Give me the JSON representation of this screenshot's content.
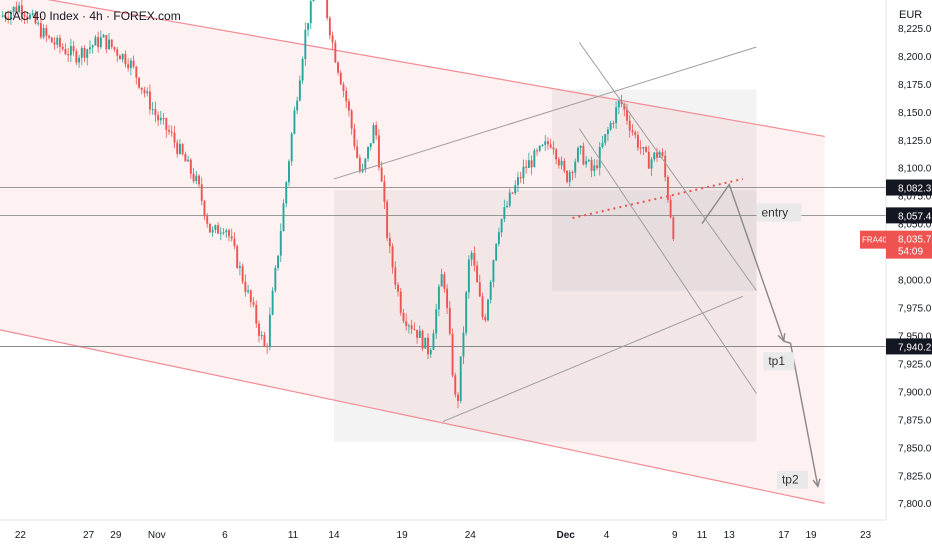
{
  "header": {
    "title": "CAC 40 Index · 4h · FOREX.com",
    "currency": "EUR"
  },
  "colors": {
    "up": "#26a69a",
    "down": "#ef5350",
    "channel": "#f28b94",
    "channel_fill": "#fdecee",
    "drawing": "#9e9e9e",
    "hline": "#7a7a7a",
    "tag_bg": "#e9e9ea",
    "price_tag": "#ef5350"
  },
  "chart_data": {
    "type": "candlestick",
    "symbol": "FRA40",
    "y_ticks": [
      "8,225.0",
      "8,200.0",
      "8,175.0",
      "8,150.0",
      "8,125.0",
      "8,100.0",
      "8,075.0",
      "8,050.0",
      "8,025.0",
      "8,000.0",
      "7,975.0",
      "7,950.0",
      "7,925.0",
      "7,900.0",
      "7,875.0",
      "7,850.0",
      "7,825.0",
      "7,800.0"
    ],
    "y_tick_values": [
      8225,
      8200,
      8175,
      8150,
      8125,
      8100,
      8075,
      8050,
      8025,
      8000,
      7975,
      7950,
      7925,
      7900,
      7875,
      7850,
      7825,
      7800
    ],
    "x_ticks": [
      "22",
      "27",
      "29",
      "Nov",
      "6",
      "11",
      "14",
      "19",
      "24",
      "Dec",
      "4",
      "9",
      "11",
      "13",
      "17",
      "19",
      "23"
    ],
    "x_tick_days": [
      -9,
      -4,
      -2,
      1,
      6,
      11,
      14,
      19,
      24,
      31,
      34,
      39,
      41,
      43,
      47,
      49,
      53
    ],
    "ylim": [
      7785,
      8250
    ],
    "xlim": [
      -10.5,
      54.5
    ],
    "price_levels": [
      {
        "label": "8,082.3",
        "value": 8082.3
      },
      {
        "label": "8,057.4",
        "value": 8057.4
      },
      {
        "label": "7,940.2",
        "value": 7940.2
      }
    ],
    "last_price": {
      "symbol": "FRA40",
      "label": "8,035.7",
      "value": 8035.7,
      "countdown": "54:09"
    },
    "annotations": [
      {
        "text": "entry",
        "day": 45,
        "value": 8060
      },
      {
        "text": "tp1",
        "day": 45.5,
        "value": 7927
      },
      {
        "text": "tp2",
        "day": 46.5,
        "value": 7821
      }
    ],
    "anchors": [
      {
        "day": -10.5,
        "close": 8235
      },
      {
        "day": -9,
        "close": 8245
      },
      {
        "day": -7,
        "close": 8215
      },
      {
        "day": -5,
        "close": 8200
      },
      {
        "day": -3,
        "close": 8215
      },
      {
        "day": -1,
        "close": 8195
      },
      {
        "day": 1,
        "close": 8145
      },
      {
        "day": 2,
        "close": 8130
      },
      {
        "day": 4,
        "close": 8085
      },
      {
        "day": 5,
        "close": 8040
      },
      {
        "day": 6,
        "close": 8050
      },
      {
        "day": 8,
        "close": 7975
      },
      {
        "day": 9,
        "close": 7935
      },
      {
        "day": 10,
        "close": 8035
      },
      {
        "day": 11,
        "close": 8140
      },
      {
        "day": 12,
        "close": 8230
      },
      {
        "day": 13,
        "close": 8270
      },
      {
        "day": 14,
        "close": 8205
      },
      {
        "day": 15,
        "close": 8155
      },
      {
        "day": 16,
        "close": 8090
      },
      {
        "day": 17,
        "close": 8140
      },
      {
        "day": 18,
        "close": 8030
      },
      {
        "day": 19,
        "close": 7970
      },
      {
        "day": 20,
        "close": 7955
      },
      {
        "day": 21,
        "close": 7935
      },
      {
        "day": 22,
        "close": 8010
      },
      {
        "day": 23,
        "close": 7880
      },
      {
        "day": 24,
        "close": 8030
      },
      {
        "day": 25,
        "close": 7960
      },
      {
        "day": 26,
        "close": 8045
      },
      {
        "day": 27,
        "close": 8075
      },
      {
        "day": 28,
        "close": 8100
      },
      {
        "day": 30,
        "close": 8125
      },
      {
        "day": 31,
        "close": 8090
      },
      {
        "day": 32,
        "close": 8115
      },
      {
        "day": 33,
        "close": 8095
      },
      {
        "day": 34,
        "close": 8130
      },
      {
        "day": 35,
        "close": 8160
      },
      {
        "day": 36,
        "close": 8130
      },
      {
        "day": 37,
        "close": 8105
      },
      {
        "day": 38,
        "close": 8115
      },
      {
        "day": 39,
        "close": 8035
      }
    ],
    "channel": {
      "upper": [
        [
          -10.5,
          8258
        ],
        [
          50,
          8128
        ]
      ],
      "lower": [
        [
          -10.5,
          7955
        ],
        [
          50,
          7800
        ]
      ]
    },
    "drawings": {
      "bull_channel_lower": [
        [
          22,
          7873
        ],
        [
          44,
          7985
        ]
      ],
      "bull_channel_upper": [
        [
          14,
          8090
        ],
        [
          45,
          8208
        ]
      ],
      "flag_upper": [
        [
          32,
          8212
        ],
        [
          45,
          7990
        ]
      ],
      "flag_lower": [
        [
          32,
          8135
        ],
        [
          45,
          7898
        ]
      ],
      "dotted_trend": [
        [
          31.5,
          8055
        ],
        [
          44,
          8090
        ]
      ],
      "zigzag": [
        [
          41,
          8050
        ],
        [
          43,
          8085
        ],
        [
          47,
          7945
        ],
        [
          47.5,
          7943
        ],
        [
          49.5,
          7815
        ]
      ],
      "shaded_boxes": [
        {
          "day0": 14,
          "day1": 45,
          "v0": 7855,
          "v1": 8080
        },
        {
          "day0": 30,
          "day1": 45,
          "v0": 7990,
          "v1": 8170
        }
      ]
    }
  }
}
